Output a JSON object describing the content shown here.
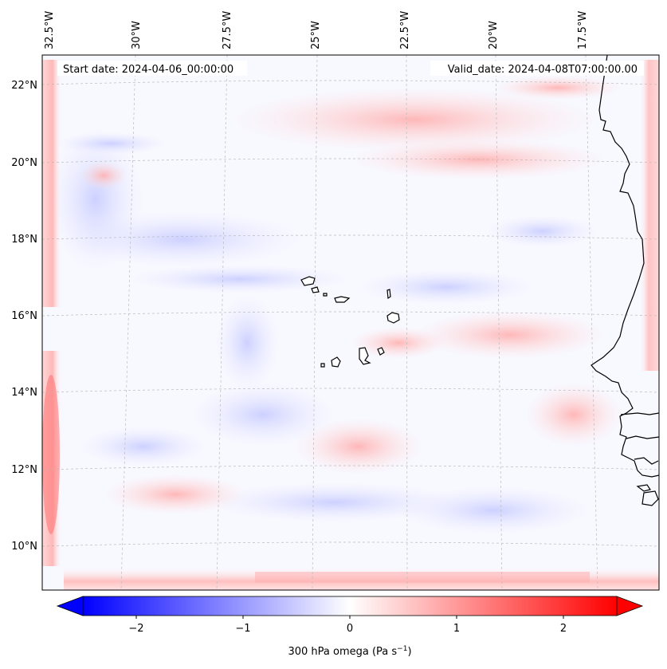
{
  "map": {
    "start_date": "Start date: 2024-04-06_00:00:00",
    "valid_date": "Valid_date: 2024-04-08T07:00:00.00",
    "lon_labels": [
      "32.5°W",
      "30°W",
      "27.5°W",
      "25°W",
      "22.5°W",
      "20°W",
      "17.5°W"
    ],
    "lat_labels": [
      "22°N",
      "20°N",
      "18°N",
      "16°N",
      "14°N",
      "12°N",
      "10°N"
    ],
    "variable_label": "300 hPa omega (Pa s",
    "unit_exponent": "−1",
    "variable_label_close": ")",
    "colorbar": {
      "ticks": [
        "−2",
        "−1",
        "0",
        "1",
        "2"
      ],
      "range": [
        -2.5,
        2.5
      ],
      "extend": "both",
      "colormap": "bwr",
      "color_low": "#0000ff",
      "color_mid": "#ffffff",
      "color_high": "#ff0000"
    },
    "coastline_color": "#000000",
    "grid": true
  }
}
